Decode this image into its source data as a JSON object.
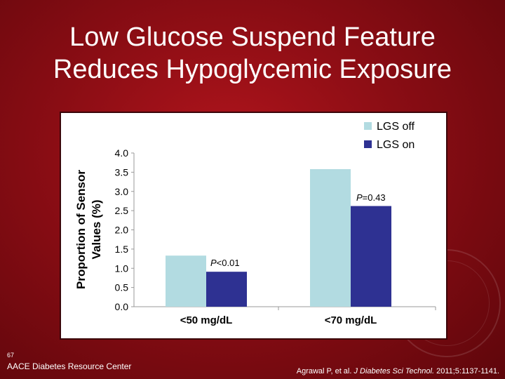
{
  "slide": {
    "title_line1": "Low Glucose Suspend Feature",
    "title_line2": "Reduces Hypoglycemic Exposure",
    "slide_number": "67",
    "footer_logo": "AACE Diabetes Resource Center",
    "citation": {
      "authors": "Agrawal P, et al. ",
      "journal": "J Diabetes Sci Technol.",
      "details": " 2011;5:1137-1141."
    }
  },
  "colors": {
    "background": "#8a0d14",
    "lgs_off": "#b2dbe1",
    "lgs_on": "#2e3192"
  },
  "chart_data": {
    "type": "bar",
    "categories": [
      "<50 mg/dL",
      "<70 mg/dL"
    ],
    "series": [
      {
        "name": "LGS off",
        "values": [
          1.33,
          3.58
        ],
        "color": "#b2dbe1"
      },
      {
        "name": "LGS on",
        "values": [
          0.91,
          2.62
        ],
        "color": "#2e3192"
      }
    ],
    "ylabel_line1": "Proportion of Sensor",
    "ylabel_line2": "Values (%)",
    "xlabel": "",
    "ylim": [
      0,
      4.0
    ],
    "yticks": [
      "0.0",
      "0.5",
      "1.0",
      "1.5",
      "2.0",
      "2.5",
      "3.0",
      "3.5",
      "4.0"
    ],
    "legend_position": "top-right",
    "annotations": [
      {
        "category": "<50 mg/dL",
        "p_letter": "P",
        "p_rest": "<0.01"
      },
      {
        "category": "<70 mg/dL",
        "p_letter": "P",
        "p_rest": "=0.43"
      }
    ],
    "grid": false
  }
}
